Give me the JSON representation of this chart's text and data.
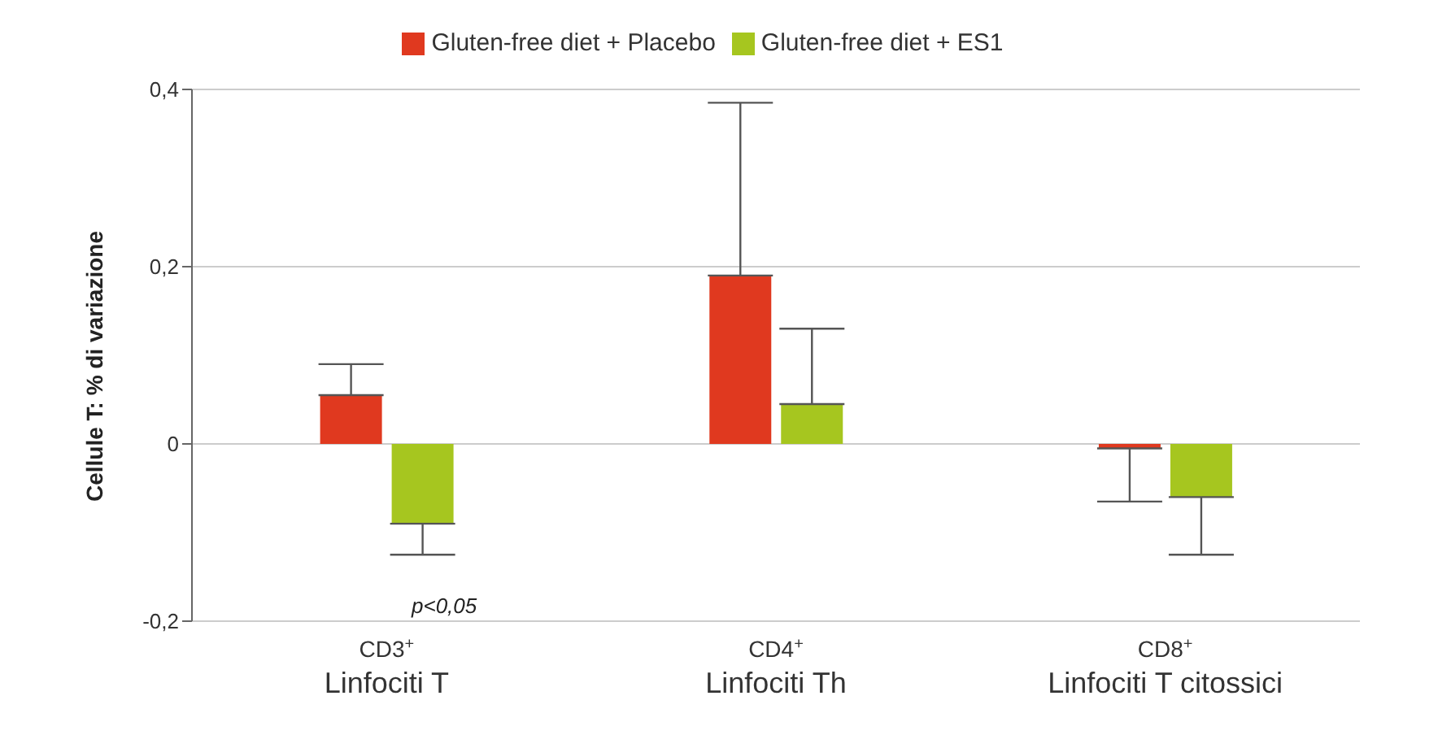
{
  "chart_data": {
    "type": "bar",
    "ylabel": "Cellule T: % di variazione",
    "categories": [
      "CD3$^{+}$\nLinfociti T",
      "CD4$^{+}$\nLinfociti Th",
      "CD8$^{+}$\nLinfociti T citossici"
    ],
    "series": [
      {
        "name": "Gluten-free diet + Placebo",
        "color": "#e0391f",
        "values": [
          0.055,
          0.19,
          -0.005
        ],
        "errors": [
          [
            0.055,
            0.09
          ],
          [
            0.19,
            0.385
          ],
          [
            -0.065,
            -0.005
          ]
        ]
      },
      {
        "name": "Gluten-free diet + ES1",
        "color": "#a6c61f",
        "values": [
          -0.09,
          0.045,
          -0.06
        ],
        "errors": [
          [
            -0.125,
            -0.09
          ],
          [
            0.045,
            0.13
          ],
          [
            -0.125,
            -0.06
          ]
        ]
      }
    ],
    "ylim": [
      -0.2,
      0.4
    ],
    "yticks": [
      {
        "value": -0.2,
        "label": "-0,2"
      },
      0,
      {
        "value": 0.2,
        "label": "0,2"
      },
      {
        "value": 0.4,
        "label": "0,4"
      }
    ],
    "grid": "y",
    "legend": "top",
    "annotations": [
      "p<0,05"
    ]
  }
}
